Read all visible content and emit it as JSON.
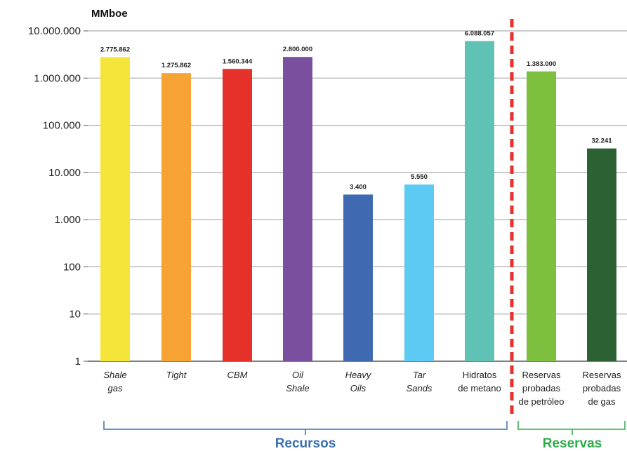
{
  "chart_data": {
    "type": "bar",
    "title": "",
    "unit_label": "MMboe",
    "yscale": "log",
    "ylim": [
      1,
      10000000
    ],
    "y_ticks": [
      "1",
      "10",
      "100",
      "1.000",
      "10.000",
      "100.000",
      "1.000.000",
      "10.000.000"
    ],
    "grid": true,
    "categories": [
      {
        "lines": [
          "Shale",
          "gas"
        ],
        "italic": true
      },
      {
        "lines": [
          "Tight"
        ],
        "italic": true
      },
      {
        "lines": [
          "CBM"
        ],
        "italic": true
      },
      {
        "lines": [
          "Oil",
          "Shale"
        ],
        "italic": true
      },
      {
        "lines": [
          "Heavy",
          "Oils"
        ],
        "italic": true
      },
      {
        "lines": [
          "Tar",
          "Sands"
        ],
        "italic": true
      },
      {
        "lines": [
          "Hidratos",
          "de metano"
        ],
        "italic": false
      },
      {
        "lines": [
          "Reservas",
          "probadas",
          "de petróleo"
        ],
        "italic": false
      },
      {
        "lines": [
          "Reservas",
          "probadas",
          "de gas"
        ],
        "italic": false
      }
    ],
    "values": [
      2775862,
      1275862,
      1560344,
      2800000,
      3400,
      5550,
      6088057,
      1383000,
      32241
    ],
    "value_labels": [
      "2.775.862",
      "1.275.862",
      "1.560.344",
      "2.800.000",
      "3.400",
      "5.550",
      "6.088.057",
      "1.383.000",
      "32.241"
    ],
    "colors": [
      "#f5e43a",
      "#f6a234",
      "#e5312a",
      "#7a4f9e",
      "#3f6ab2",
      "#5ccaf2",
      "#5fc2b5",
      "#7dbf3f",
      "#2b6133"
    ],
    "groups": [
      {
        "label": "Recursos",
        "color": "#3a6fb0",
        "from": 0,
        "to": 6
      },
      {
        "label": "Reservas",
        "color": "#2eae4a",
        "from": 7,
        "to": 8
      }
    ],
    "separator": {
      "after_index": 6,
      "color": "#e8312a",
      "style": "dashed"
    }
  }
}
